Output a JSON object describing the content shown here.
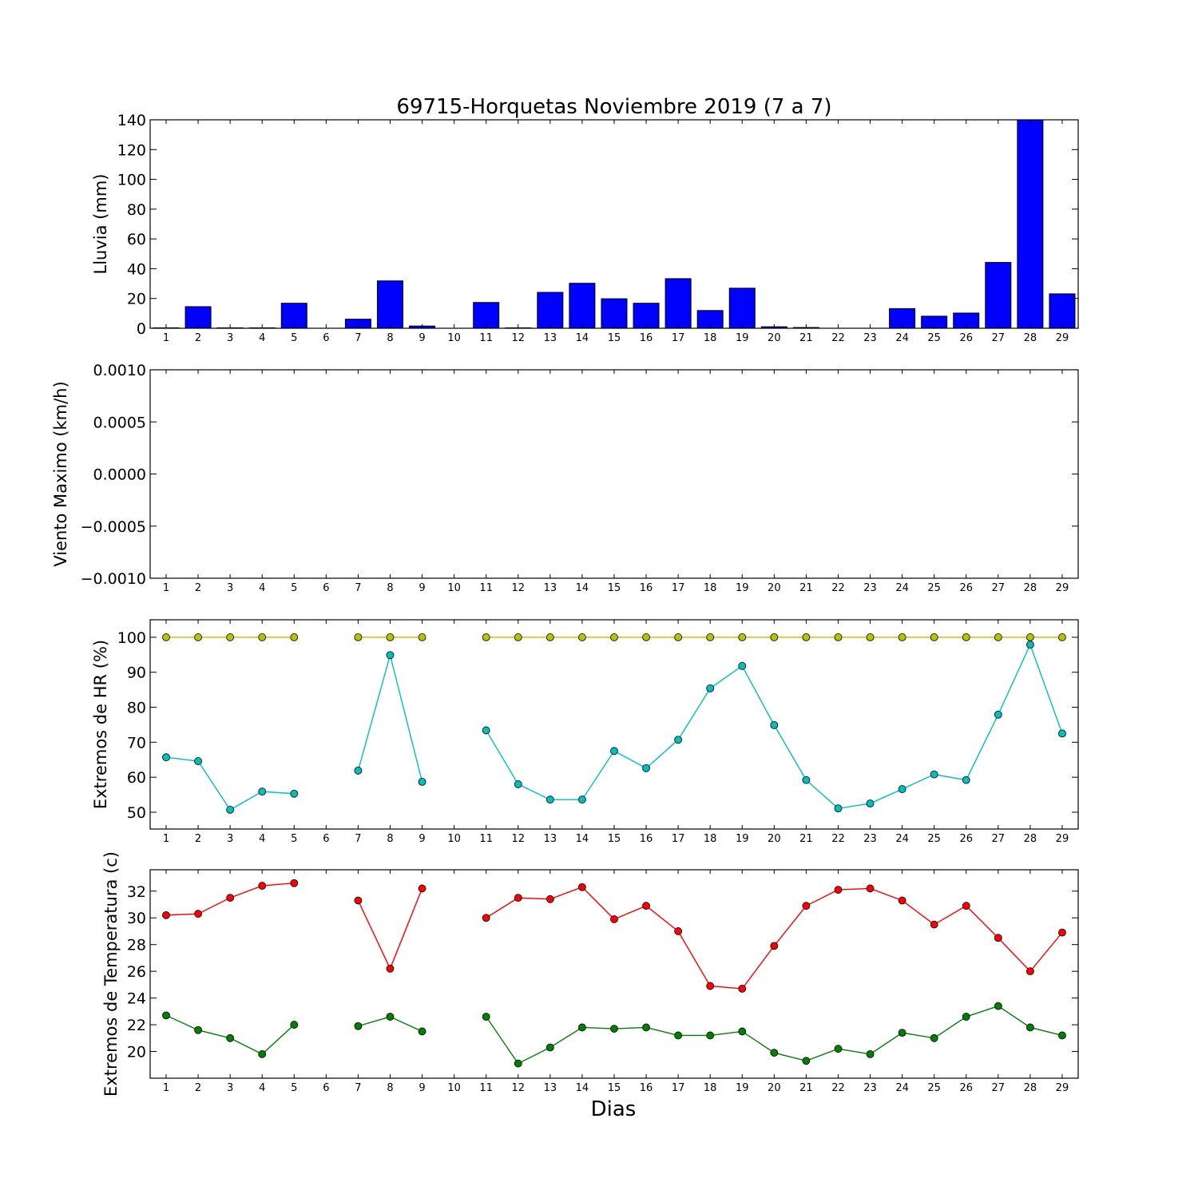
{
  "chart_data": [
    {
      "type": "bar",
      "title": "69715-Horquetas Noviembre 2019  (7 a 7)",
      "ylabel": "Lluvia (mm)",
      "xlabel": "",
      "ylim": [
        0,
        140
      ],
      "yticks": [
        0,
        20,
        40,
        60,
        80,
        100,
        120,
        140
      ],
      "ytick_labels": [
        "0",
        "20",
        "40",
        "60",
        "80",
        "100",
        "120",
        "140"
      ],
      "categories": [
        "1",
        "2",
        "3",
        "4",
        "5",
        "6",
        "7",
        "8",
        "9",
        "10",
        "11",
        "12",
        "13",
        "14",
        "15",
        "16",
        "17",
        "18",
        "19",
        "20",
        "21",
        "22",
        "23",
        "24",
        "25",
        "26",
        "27",
        "28",
        "29"
      ],
      "values": [
        0.3,
        14.5,
        0.3,
        0.3,
        16.8,
        0,
        6.1,
        31.8,
        1.5,
        0,
        17.3,
        0.3,
        24.1,
        30.2,
        19.8,
        16.8,
        33.3,
        11.9,
        26.9,
        1,
        0.5,
        0,
        0,
        13.2,
        8.1,
        10.2,
        44.2,
        140,
        23.1
      ],
      "color": "#0000ff",
      "grid": false
    },
    {
      "type": "line",
      "ylabel": "Viento Maximo (km/h)",
      "ylim": [
        -0.001,
        0.001
      ],
      "yticks": [
        -0.001,
        -0.0005,
        0,
        0.0005,
        0.001
      ],
      "ytick_labels": [
        "−0.0010",
        "−0.0005",
        "0.0000",
        "0.0005",
        "0.0010"
      ],
      "categories": [
        "1",
        "2",
        "3",
        "4",
        "5",
        "6",
        "7",
        "8",
        "9",
        "10",
        "11",
        "12",
        "13",
        "14",
        "15",
        "16",
        "17",
        "18",
        "19",
        "20",
        "21",
        "22",
        "23",
        "24",
        "25",
        "26",
        "27",
        "28",
        "29"
      ],
      "series": [],
      "grid": false
    },
    {
      "type": "line",
      "ylabel": "Extremos de HR (%)",
      "ylim": [
        45.2,
        105
      ],
      "yticks": [
        50,
        60,
        70,
        80,
        90,
        100
      ],
      "ytick_labels": [
        "50",
        "60",
        "70",
        "80",
        "90",
        "100"
      ],
      "categories": [
        "1",
        "2",
        "3",
        "4",
        "5",
        "6",
        "7",
        "8",
        "9",
        "10",
        "11",
        "12",
        "13",
        "14",
        "15",
        "16",
        "17",
        "18",
        "19",
        "20",
        "21",
        "22",
        "23",
        "24",
        "25",
        "26",
        "27",
        "28",
        "29"
      ],
      "series": [
        {
          "color": "#bfbf00",
          "values": [
            100,
            100,
            100,
            100,
            100,
            null,
            100,
            100,
            100,
            null,
            100,
            100,
            100,
            100,
            100,
            100,
            100,
            100,
            100,
            100,
            100,
            100,
            100,
            100,
            100,
            100,
            100,
            100,
            100
          ]
        },
        {
          "color": "#00bfbf",
          "values": [
            65.7,
            64.6,
            50.7,
            55.9,
            55.3,
            null,
            61.9,
            94.9,
            58.7,
            null,
            73.4,
            58,
            53.6,
            53.6,
            67.5,
            62.6,
            70.7,
            85.4,
            91.8,
            74.9,
            59.2,
            51.1,
            52.5,
            56.6,
            60.8,
            59.2,
            77.9,
            97.9,
            72.5
          ]
        }
      ],
      "grid": false
    },
    {
      "type": "line",
      "ylabel": "Extremos de Temperatura (c)",
      "xlabel": "Dias",
      "ylim": [
        18,
        33.6
      ],
      "yticks": [
        20,
        22,
        24,
        26,
        28,
        30,
        32
      ],
      "ytick_labels": [
        "20",
        "22",
        "24",
        "26",
        "28",
        "30",
        "32"
      ],
      "categories": [
        "1",
        "2",
        "3",
        "4",
        "5",
        "6",
        "7",
        "8",
        "9",
        "10",
        "11",
        "12",
        "13",
        "14",
        "15",
        "16",
        "17",
        "18",
        "19",
        "20",
        "21",
        "22",
        "23",
        "24",
        "25",
        "26",
        "27",
        "28",
        "29"
      ],
      "series": [
        {
          "color": "#ff0000",
          "values": [
            30.2,
            30.3,
            31.5,
            32.4,
            32.6,
            null,
            31.3,
            26.2,
            32.2,
            null,
            30,
            31.5,
            31.4,
            32.3,
            29.9,
            30.9,
            29,
            24.9,
            24.7,
            27.9,
            30.9,
            32.1,
            32.2,
            31.3,
            29.5,
            30.9,
            28.5,
            26,
            28.9
          ]
        },
        {
          "color": "#008000",
          "values": [
            22.7,
            21.6,
            21,
            19.8,
            22,
            null,
            21.9,
            22.6,
            21.5,
            null,
            22.6,
            19.1,
            20.3,
            21.8,
            21.7,
            21.8,
            21.2,
            21.2,
            21.5,
            19.9,
            19.3,
            20.2,
            19.8,
            21.4,
            21,
            22.6,
            23.4,
            21.8,
            21.2
          ]
        }
      ],
      "grid": false
    }
  ]
}
